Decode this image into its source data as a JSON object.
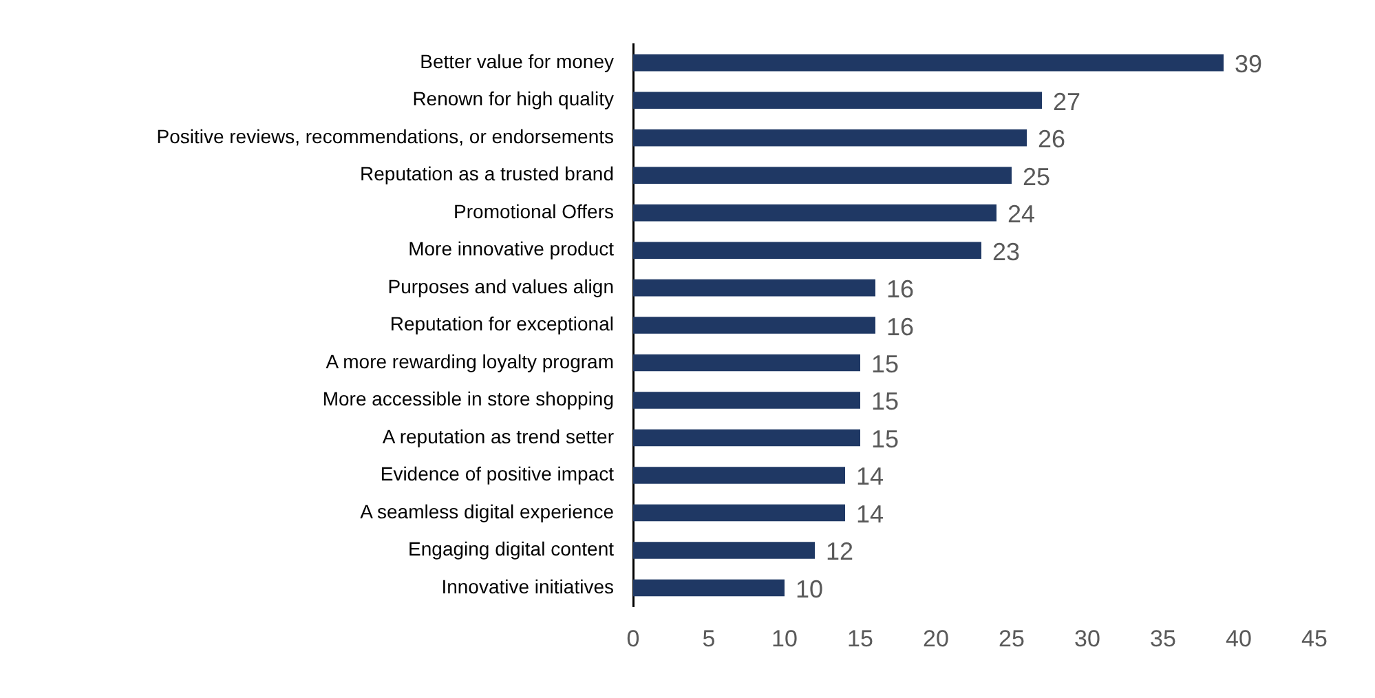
{
  "chart_data": {
    "type": "bar",
    "orientation": "horizontal",
    "categories": [
      "Better value for money",
      "Renown for high quality",
      "Positive reviews, recommendations, or endorsements",
      "Reputation as a trusted brand",
      "Promotional Offers",
      "More innovative product",
      "Purposes and values align",
      "Reputation for exceptional",
      "A more rewarding loyalty program",
      "More accessible in store shopping",
      "A reputation as trend setter",
      "Evidence of positive impact",
      "A seamless digital experience",
      "Engaging digital content",
      "Innovative initiatives"
    ],
    "values": [
      39,
      27,
      26,
      25,
      24,
      23,
      16,
      16,
      15,
      15,
      15,
      14,
      14,
      12,
      10
    ],
    "color": "#1f3864",
    "xlim": [
      0,
      45
    ],
    "xticks": [
      0,
      5,
      10,
      15,
      20,
      25,
      30,
      35,
      40,
      45
    ],
    "grid": false,
    "legend": false,
    "data_labels": true
  }
}
